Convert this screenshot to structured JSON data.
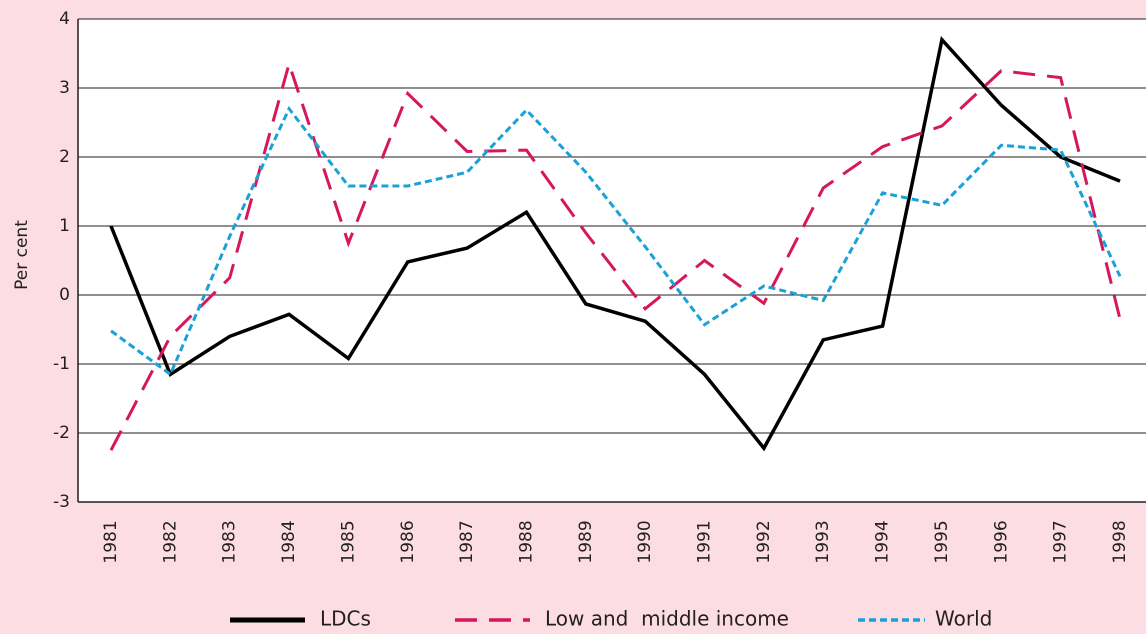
{
  "chart_data": {
    "type": "line",
    "y_label": "Per cent",
    "categories": [
      "1981",
      "1982",
      "1983",
      "1984",
      "1985",
      "1986",
      "1987",
      "1988",
      "1989",
      "1990",
      "1991",
      "1992",
      "1993",
      "1994",
      "1995",
      "1996",
      "1997",
      "1998"
    ],
    "series": [
      {
        "name": "LDCs",
        "color": "#000000",
        "line_style": "solid",
        "values": [
          1.0,
          -1.15,
          -0.6,
          -0.28,
          -0.92,
          0.48,
          0.68,
          1.2,
          -0.13,
          -0.38,
          -1.15,
          -2.22,
          -0.65,
          -0.45,
          3.7,
          2.75,
          2.0,
          1.65
        ]
      },
      {
        "name": "Low and  middle income",
        "color": "#d6175c",
        "line_style": "dashed",
        "values": [
          -2.25,
          -0.6,
          0.25,
          3.35,
          0.75,
          2.92,
          2.08,
          2.1,
          0.9,
          -0.2,
          0.5,
          -0.12,
          1.55,
          2.15,
          2.45,
          3.25,
          3.15,
          -0.35
        ]
      },
      {
        "name": "World",
        "color": "#1ba1d8",
        "line_style": "dotted",
        "values": [
          -0.52,
          -1.15,
          0.85,
          2.7,
          1.58,
          1.58,
          1.78,
          2.68,
          1.78,
          0.7,
          -0.43,
          0.13,
          -0.08,
          1.48,
          1.3,
          2.17,
          2.1,
          0.27
        ]
      }
    ],
    "ylim": [
      -3,
      4
    ],
    "yticks": [
      -3,
      -2,
      -1,
      0,
      1,
      2,
      3,
      4
    ],
    "grid": true
  }
}
